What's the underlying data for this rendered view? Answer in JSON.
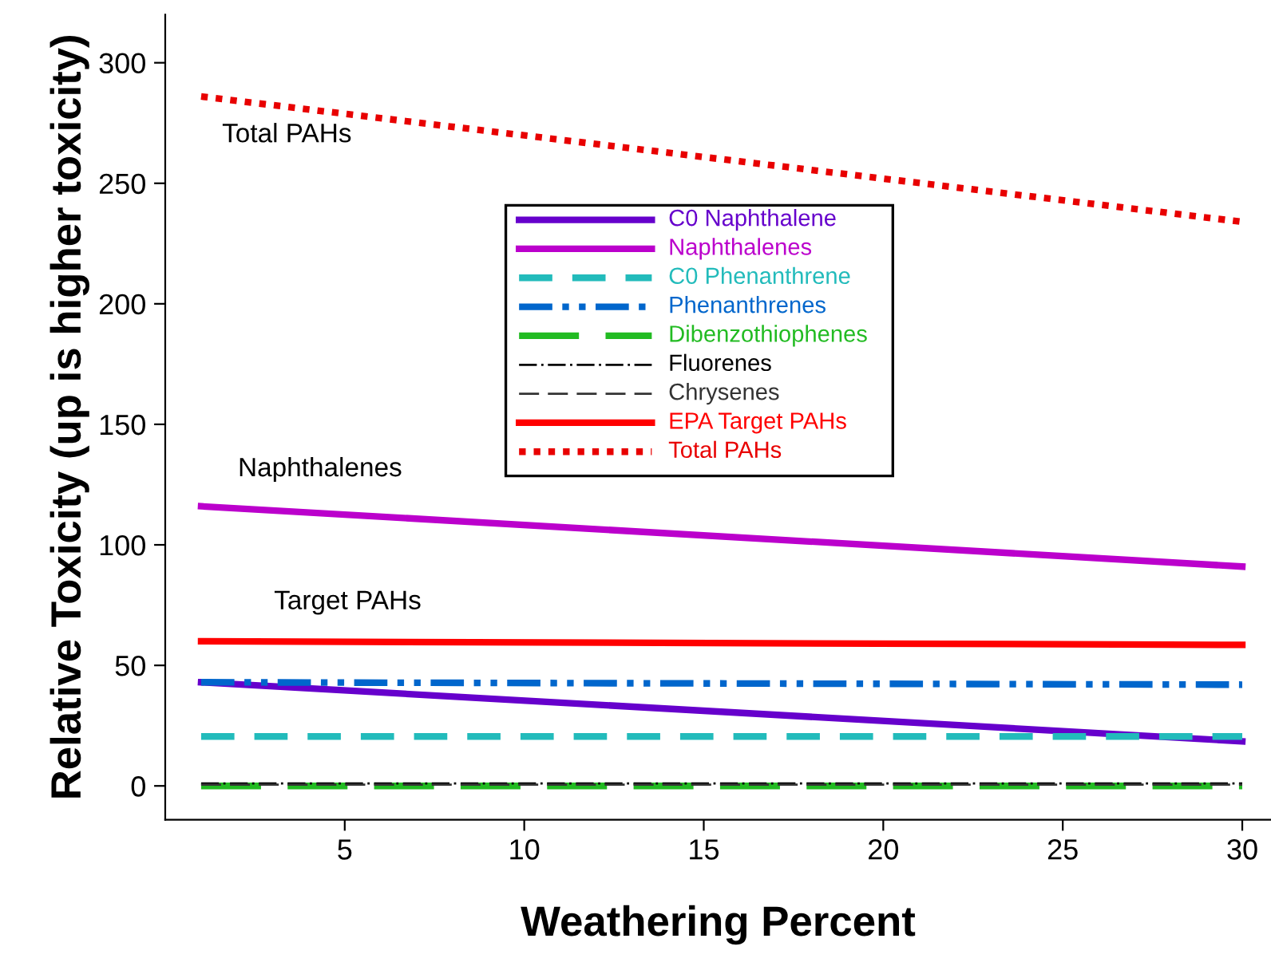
{
  "chart_data": {
    "type": "line",
    "xlabel": "Weathering Percent",
    "ylabel": "Relative Toxicity (up is higher toxicity)",
    "x": [
      1,
      30
    ],
    "series": [
      {
        "name": "C0 Naphthalene",
        "color": "#6600cc",
        "values": [
          43,
          18.5
        ],
        "line_style": "solid"
      },
      {
        "name": "Naphthalenes",
        "color": "#bb00cc",
        "values": [
          116,
          91
        ],
        "line_style": "solid"
      },
      {
        "name": "C0 Phenanthrene",
        "color": "#22bbbb",
        "values": [
          20.5,
          20.5
        ],
        "line_style": "dashed"
      },
      {
        "name": "Phenanthrenes",
        "color": "#0066cc",
        "values": [
          43,
          42
        ],
        "line_style": "dashdotdot"
      },
      {
        "name": "Dibenzothiophenes",
        "color": "#22bb22",
        "values": [
          0,
          0
        ],
        "line_style": "longdash"
      },
      {
        "name": "Fluorenes",
        "color": "#000000",
        "values": [
          1,
          1
        ],
        "line_style": "dashdot"
      },
      {
        "name": "Chrysenes",
        "color": "#333333",
        "values": [
          0.5,
          0.5
        ],
        "line_style": "longdash"
      },
      {
        "name": "EPA Target PAHs",
        "color": "#ff0000",
        "values": [
          60,
          58.5
        ],
        "line_style": "solid"
      },
      {
        "name": "Total PAHs",
        "color": "#e80000",
        "values": [
          286,
          234
        ],
        "line_style": "dotted"
      }
    ],
    "annotations": [
      "Total PAHs",
      "Naphthalenes",
      "Target PAHs"
    ],
    "xlim": [
      0,
      30.8
    ],
    "ylim": [
      -14,
      320
    ],
    "xticks": [
      5,
      10,
      15,
      20,
      25,
      30
    ],
    "yticks": [
      0,
      50,
      100,
      150,
      200,
      250,
      300
    ],
    "grid": false,
    "legend": "top",
    "marker": "none"
  }
}
